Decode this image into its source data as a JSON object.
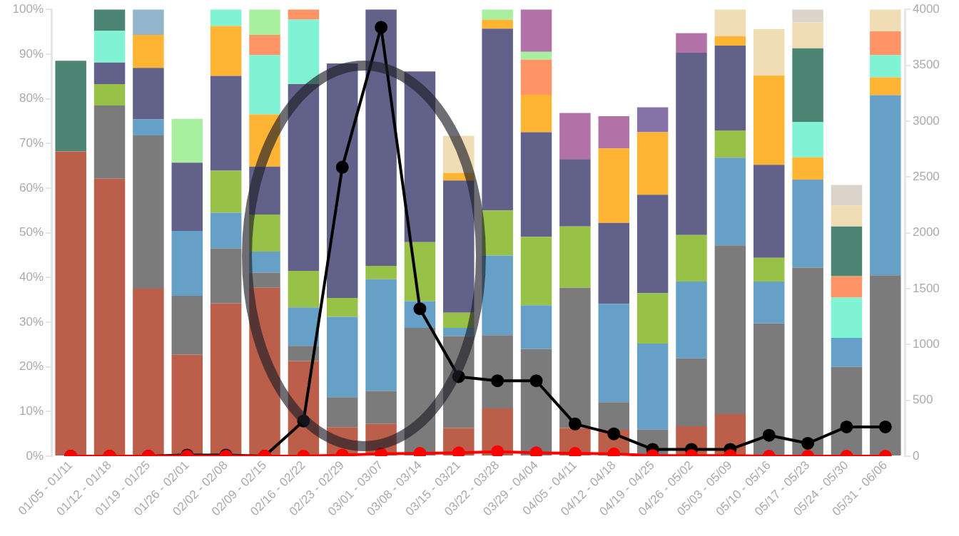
{
  "chart_data": {
    "type": "bar",
    "stacked": true,
    "categories": [
      "01/05 - 01/11",
      "01/12 - 01/18",
      "01/19 - 01/25",
      "01/26 - 02/01",
      "02/02 - 02/08",
      "02/09 - 02/15",
      "02/16 - 02/22",
      "02/23 - 02/29",
      "03/01 - 03/07",
      "03/08 - 03/14",
      "03/15 - 03/21",
      "03/22 - 03/28",
      "03/29 - 04/04",
      "04/05 - 04/11",
      "04/12 - 04/18",
      "04/19 - 04/25",
      "04/26 - 05/02",
      "05/03 - 05/09",
      "05/10 - 05/16",
      "05/17 - 05/23",
      "05/24 - 05/30",
      "05/31 - 06/06"
    ],
    "series": [
      {
        "color": "#bb5f4a",
        "values": [
          68.2,
          62.1,
          37.5,
          22.7,
          34.2,
          37.7,
          21.3,
          6.5,
          7.2,
          null,
          6.3,
          10.7,
          null,
          6.3,
          5.9,
          null,
          6.7,
          9.4,
          null,
          null,
          null,
          null
        ]
      },
      {
        "color": "#7b7b7b",
        "values": [
          null,
          16.4,
          34.3,
          13.2,
          12.3,
          3.4,
          3.4,
          6.7,
          7.4,
          28.7,
          20.6,
          16.4,
          24.0,
          31.4,
          6.2,
          6.0,
          15.2,
          37.8,
          29.7,
          42.2,
          20.0,
          40.5
        ]
      },
      {
        "color": "#66a0c7",
        "values": [
          null,
          null,
          3.6,
          14.5,
          8.0,
          4.7,
          8.6,
          18.0,
          25.0,
          6.0,
          1.8,
          17.8,
          9.8,
          null,
          22.0,
          19.2,
          17.2,
          19.6,
          9.4,
          19.7,
          6.5,
          40.3
        ]
      },
      {
        "color": "#98c147",
        "values": [
          null,
          4.8,
          null,
          null,
          9.4,
          8.3,
          8.2,
          4.2,
          3.0,
          13.2,
          3.4,
          10.1,
          15.3,
          13.7,
          null,
          11.3,
          10.4,
          6.1,
          5.3,
          null,
          null,
          null
        ]
      },
      {
        "color": "#626189",
        "values": [
          null,
          4.8,
          11.5,
          15.3,
          21.2,
          10.7,
          41.8,
          52.5,
          57.4,
          38.2,
          29.6,
          40.7,
          23.4,
          15.1,
          18.1,
          22.0,
          40.8,
          19.0,
          20.8,
          null,
          null,
          null
        ]
      },
      {
        "color": "#ffb433",
        "values": [
          null,
          null,
          7.4,
          null,
          11.2,
          11.7,
          null,
          null,
          null,
          null,
          1.7,
          2.0,
          8.4,
          null,
          16.7,
          14.0,
          null,
          2.1,
          20.0,
          5.0,
          null,
          4.0
        ]
      },
      {
        "color": "#7ff3d3",
        "values": [
          null,
          7.1,
          null,
          null,
          3.7,
          13.3,
          14.4,
          null,
          null,
          null,
          null,
          null,
          null,
          null,
          null,
          null,
          null,
          null,
          null,
          7.9,
          9.0,
          5.0
        ]
      },
      {
        "color": "#ff9466",
        "values": [
          null,
          null,
          null,
          null,
          null,
          4.5,
          2.3,
          null,
          null,
          null,
          null,
          null,
          7.9,
          null,
          null,
          null,
          null,
          null,
          null,
          null,
          4.8,
          5.3
        ]
      },
      {
        "color": "#a8f0a0",
        "values": [
          null,
          null,
          null,
          9.8,
          null,
          5.7,
          null,
          null,
          null,
          null,
          null,
          2.3,
          1.7,
          null,
          null,
          null,
          null,
          null,
          null,
          null,
          null,
          null
        ]
      },
      {
        "color": "#4d8574",
        "values": [
          20.3,
          4.8,
          null,
          null,
          null,
          null,
          null,
          null,
          null,
          null,
          null,
          null,
          null,
          null,
          null,
          null,
          null,
          null,
          null,
          16.5,
          11.1,
          null
        ]
      },
      {
        "color": "#93b5cc",
        "values": [
          null,
          null,
          5.7,
          null,
          null,
          null,
          null,
          null,
          null,
          null,
          null,
          null,
          null,
          null,
          null,
          null,
          null,
          null,
          null,
          null,
          null,
          null
        ]
      },
      {
        "color": "#b272a8",
        "values": [
          null,
          null,
          null,
          null,
          null,
          null,
          null,
          null,
          null,
          null,
          null,
          null,
          9.5,
          10.3,
          7.2,
          null,
          4.4,
          null,
          null,
          null,
          null,
          null
        ]
      },
      {
        "color": "#8773a8",
        "values": [
          null,
          null,
          null,
          null,
          null,
          null,
          null,
          null,
          null,
          null,
          null,
          null,
          null,
          null,
          null,
          5.6,
          null,
          null,
          null,
          null,
          null,
          null
        ]
      },
      {
        "color": "#f0ddb5",
        "values": [
          null,
          null,
          null,
          null,
          null,
          null,
          null,
          null,
          null,
          null,
          8.3,
          null,
          null,
          null,
          null,
          null,
          null,
          6.0,
          10.4,
          5.8,
          4.7,
          4.9
        ]
      },
      {
        "color": "#dcd3cb",
        "values": [
          null,
          null,
          null,
          null,
          null,
          null,
          null,
          null,
          null,
          null,
          null,
          null,
          null,
          null,
          null,
          null,
          null,
          null,
          null,
          2.9,
          4.6,
          null
        ]
      },
      {
        "type": "line",
        "axis": "y2",
        "color": "#000000",
        "values": [
          0,
          0,
          0,
          10,
          10,
          0,
          315,
          2587,
          3840,
          1320,
          712,
          675,
          675,
          288,
          200,
          61,
          61,
          61,
          187,
          115,
          262,
          262
        ]
      },
      {
        "type": "line",
        "axis": "y2",
        "color": "#ff0000",
        "values": [
          0,
          0,
          0,
          0,
          0,
          0,
          0,
          10,
          20,
          25,
          30,
          40,
          30,
          25,
          20,
          5,
          5,
          5,
          0,
          0,
          0,
          0
        ]
      }
    ],
    "ylim": [
      0,
      100
    ],
    "yticks": [
      {
        "value": 0,
        "label": "0%"
      },
      {
        "value": 10,
        "label": "10%"
      },
      {
        "value": 20,
        "label": "20%"
      },
      {
        "value": 30,
        "label": "30%"
      },
      {
        "value": 40,
        "label": "40%"
      },
      {
        "value": 50,
        "label": "50%"
      },
      {
        "value": 60,
        "label": "60%"
      },
      {
        "value": 70,
        "label": "70%"
      },
      {
        "value": 80,
        "label": "80%"
      },
      {
        "value": 90,
        "label": "90%"
      },
      {
        "value": 100,
        "label": "100%"
      }
    ],
    "y2lim": [
      0,
      4000
    ],
    "y2ticks": [
      0,
      500,
      1000,
      1500,
      2000,
      2500,
      3000,
      3500,
      4000
    ],
    "marker": "circle",
    "grid": false,
    "legend": false
  }
}
